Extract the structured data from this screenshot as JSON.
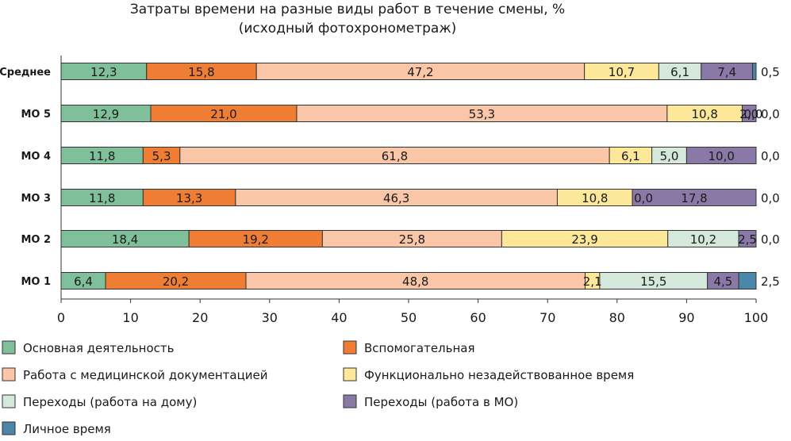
{
  "chart_data": {
    "type": "bar",
    "orientation": "horizontal",
    "stacked": true,
    "title": "Затраты времени на разные виды работ в течение смены, %",
    "subtitle": "(исходный фотохронометраж)",
    "categories": [
      "Среднее",
      "МО 5",
      "МО 4",
      "МО 3",
      "МО 2",
      "МО 1"
    ],
    "xlim": [
      0,
      100
    ],
    "xticks": [
      "0",
      "10",
      "20",
      "30",
      "40",
      "50",
      "60",
      "70",
      "80",
      "90",
      "100"
    ],
    "grid": false,
    "legend_position": "bottom",
    "series": [
      {
        "name": "Основная деятельность",
        "color": "#7fbf9a",
        "values": [
          12.3,
          12.9,
          11.8,
          11.8,
          18.4,
          6.4
        ],
        "labels": [
          "12,3",
          "12,9",
          "11,8",
          "11,8",
          "18,4",
          "6,4"
        ]
      },
      {
        "name": "Вспомогательная",
        "color": "#ef7d33",
        "values": [
          15.8,
          21.0,
          5.3,
          13.3,
          19.2,
          20.2
        ],
        "labels": [
          "15,8",
          "21,0",
          "5,3",
          "13,3",
          "19,2",
          "20,2"
        ]
      },
      {
        "name": "Работа с медицинской документацией",
        "color": "#f9c6a8",
        "values": [
          47.2,
          53.3,
          61.8,
          46.3,
          25.8,
          48.8
        ],
        "labels": [
          "47,2",
          "53,3",
          "61,8",
          "46,3",
          "25,8",
          "48,8"
        ]
      },
      {
        "name": "Функционально незадействованное время",
        "color": "#fde89a",
        "values": [
          10.7,
          10.8,
          6.1,
          10.8,
          23.9,
          2.1
        ],
        "labels": [
          "10,7",
          "10,8",
          "6,1",
          "10,8",
          "23,9",
          "2,1"
        ]
      },
      {
        "name": "Переходы (работа на дому)",
        "color": "#d5e8dc",
        "values": [
          6.1,
          0.0,
          5.0,
          0.0,
          10.2,
          15.5
        ],
        "labels": [
          "6,1",
          "0,0",
          "5,0",
          "0,0",
          "10,2",
          "15,5"
        ]
      },
      {
        "name": "Переходы (работа в МО)",
        "color": "#8a79a6",
        "values": [
          7.4,
          2.0,
          10.0,
          17.8,
          2.5,
          4.5
        ],
        "labels": [
          "7,4",
          "2,0",
          "10,0",
          "17,8",
          "2,5",
          "4,5"
        ]
      },
      {
        "name": "Личное время",
        "color": "#4a86a8",
        "values": [
          0.5,
          0.0,
          0.0,
          0.0,
          0.0,
          2.5
        ],
        "labels": [
          "0,5",
          "0,0",
          "0,0",
          "0,0",
          "0,0",
          "2,5"
        ]
      }
    ]
  }
}
